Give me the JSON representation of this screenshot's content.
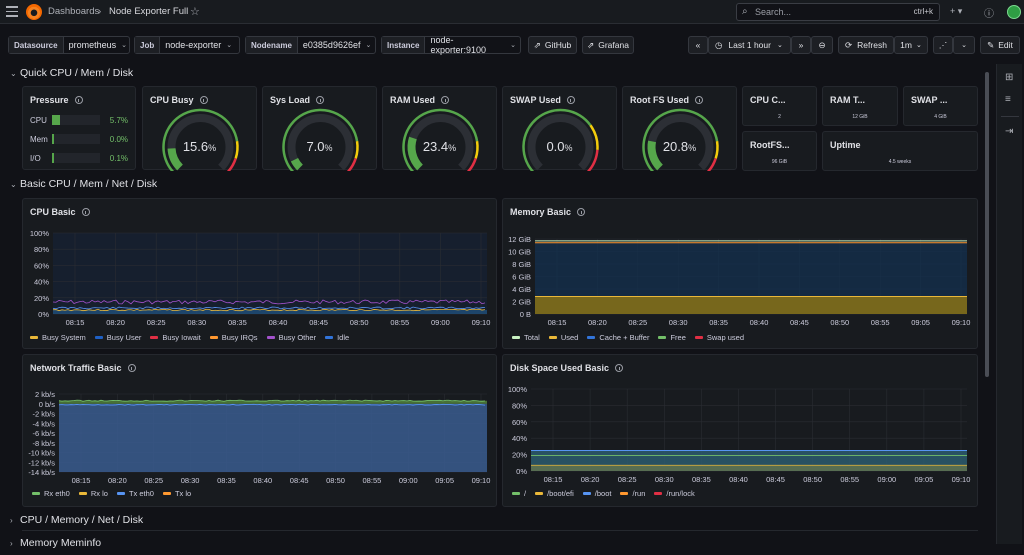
{
  "topbar": {
    "breadcrumb_parent": "Dashboards",
    "breadcrumb_sep": "›",
    "dashboard_title": "Node Exporter Full",
    "search_placeholder": "Search...",
    "search_shortcut": "ctrl+k",
    "plus_label": "+ ▾"
  },
  "variables": [
    {
      "label": "Datasource",
      "value": "prometheus"
    },
    {
      "label": "Job",
      "value": "node-exporter"
    },
    {
      "label": "Nodename",
      "value": "e0385d9626ef"
    },
    {
      "label": "Instance",
      "value": "node-exporter:9100"
    }
  ],
  "links": {
    "github": "GitHub",
    "grafana": "Grafana"
  },
  "timepicker": {
    "range": "Last 1 hour",
    "refresh": "Refresh",
    "interval": "1m",
    "edit": "Edit"
  },
  "rows": {
    "quick": "Quick CPU / Mem / Disk",
    "basic": "Basic CPU / Mem / Net / Disk",
    "cpu_mem_net_disk": "CPU / Memory / Net / Disk",
    "meminfo": "Memory Meminfo"
  },
  "pressure": {
    "title": "Pressure",
    "items": [
      {
        "name": "CPU",
        "value": "5.7%",
        "fraction": 0.057
      },
      {
        "name": "Mem",
        "value": "0.0%",
        "fraction": 0.0
      },
      {
        "name": "I/O",
        "value": "0.1%",
        "fraction": 0.001
      }
    ]
  },
  "gauges": [
    {
      "title": "CPU Busy",
      "value": "15.6",
      "unit": "%",
      "fraction": 0.156,
      "color": "#56a64b"
    },
    {
      "title": "Sys Load",
      "value": "7.0",
      "unit": "%",
      "fraction": 0.07,
      "color": "#56a64b"
    },
    {
      "title": "RAM Used",
      "value": "23.4",
      "unit": "%",
      "fraction": 0.234,
      "color": "#56a64b"
    },
    {
      "title": "SWAP Used",
      "value": "0.0",
      "unit": "%",
      "fraction": 0.0,
      "color": "#56a64b"
    },
    {
      "title": "Root FS Used",
      "value": "20.8",
      "unit": "%",
      "fraction": 0.208,
      "color": "#56a64b"
    }
  ],
  "stats": [
    {
      "title": "CPU C...",
      "value": "2"
    },
    {
      "title": "RAM T...",
      "value": "12 GiB"
    },
    {
      "title": "SWAP ...",
      "value": "4 GiB"
    },
    {
      "title": "RootFS...",
      "value": "96 GiB"
    },
    {
      "title": "Uptime",
      "value": "4.5 weeks"
    }
  ],
  "panels": {
    "cpu_basic": {
      "title": "CPU Basic",
      "yticks": [
        "100%",
        "80%",
        "60%",
        "40%",
        "20%",
        "0%"
      ],
      "xticks": [
        "08:15",
        "08:20",
        "08:25",
        "08:30",
        "08:35",
        "08:40",
        "08:45",
        "08:50",
        "08:55",
        "09:00",
        "09:10"
      ],
      "legend": [
        {
          "name": "Busy System",
          "color": "#eab839"
        },
        {
          "name": "Busy User",
          "color": "#1f60c4"
        },
        {
          "name": "Busy Iowait",
          "color": "#e02f44"
        },
        {
          "name": "Busy IRQs",
          "color": "#ff9830"
        },
        {
          "name": "Busy Other",
          "color": "#a352cc"
        },
        {
          "name": "Idle",
          "color": "#3274d9"
        }
      ]
    },
    "memory_basic": {
      "title": "Memory Basic",
      "yticks": [
        "12 GiB",
        "10 GiB",
        "8 GiB",
        "6 GiB",
        "4 GiB",
        "2 GiB",
        "0 B"
      ],
      "xticks": [
        "08:15",
        "08:20",
        "08:25",
        "08:30",
        "08:35",
        "08:40",
        "08:45",
        "08:50",
        "08:55",
        "09:05",
        "09:10"
      ],
      "legend": [
        {
          "name": "Total",
          "color": "#c8f2c2"
        },
        {
          "name": "Used",
          "color": "#eab839"
        },
        {
          "name": "Cache + Buffer",
          "color": "#3274d9"
        },
        {
          "name": "Free",
          "color": "#73bf69"
        },
        {
          "name": "Swap used",
          "color": "#e02f44"
        }
      ]
    },
    "network_basic": {
      "title": "Network Traffic Basic",
      "yticks": [
        "2 kb/s",
        "0 b/s",
        "-2 kb/s",
        "-4 kb/s",
        "-6 kb/s",
        "-8 kb/s",
        "-10 kb/s",
        "-12 kb/s",
        "-14 kb/s"
      ],
      "xticks": [
        "08:15",
        "08:20",
        "08:25",
        "08:30",
        "08:35",
        "08:40",
        "08:45",
        "08:50",
        "08:55",
        "09:00",
        "09:05",
        "09:10"
      ],
      "legend": [
        {
          "name": "Rx eth0",
          "color": "#73bf69"
        },
        {
          "name": "Rx lo",
          "color": "#eab839"
        },
        {
          "name": "Tx eth0",
          "color": "#5794f2"
        },
        {
          "name": "Tx lo",
          "color": "#ff9830"
        }
      ]
    },
    "disk_basic": {
      "title": "Disk Space Used Basic",
      "yticks": [
        "100%",
        "80%",
        "60%",
        "40%",
        "20%",
        "0%"
      ],
      "xticks": [
        "08:15",
        "08:20",
        "08:25",
        "08:30",
        "08:35",
        "08:40",
        "08:45",
        "08:50",
        "08:55",
        "09:00",
        "09:05",
        "09:10"
      ],
      "legend": [
        {
          "name": "/",
          "color": "#73bf69"
        },
        {
          "name": "/boot/efi",
          "color": "#eab839"
        },
        {
          "name": "/boot",
          "color": "#5794f2"
        },
        {
          "name": "/run",
          "color": "#ff9830"
        },
        {
          "name": "/run/lock",
          "color": "#e02f44"
        }
      ]
    }
  }
}
